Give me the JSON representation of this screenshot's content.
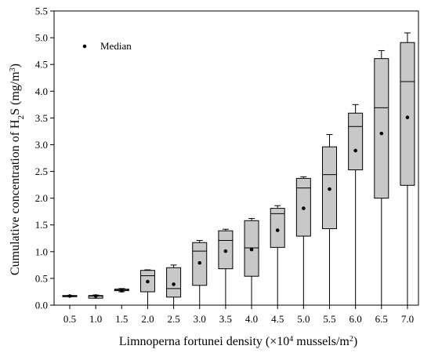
{
  "chart_data": {
    "type": "boxplot",
    "xlabel": {
      "pre": "Limnoperna fortunei density (×10",
      "sup": "4",
      "post": " mussels/m",
      "sup2": "2",
      "end": ")"
    },
    "ylabel": {
      "pre": "Cumulative concentration of H",
      "sub": "2",
      "mid": "S (mg/m",
      "sup": "3",
      "end": ")"
    },
    "ylim": [
      0.0,
      5.5
    ],
    "yticks": [
      "0.0",
      "0.5",
      "1.0",
      "1.5",
      "2.0",
      "2.5",
      "3.0",
      "3.5",
      "4.0",
      "4.5",
      "5.0",
      "5.5"
    ],
    "categories": [
      "0.5",
      "1.0",
      "1.5",
      "2.0",
      "2.5",
      "3.0",
      "3.5",
      "4.0",
      "4.5",
      "5.0",
      "5.5",
      "6.0",
      "6.5",
      "7.0"
    ],
    "legend": {
      "label": "Median",
      "position": "top-left"
    },
    "box_color": "#c8c8c8",
    "series": [
      {
        "x": "0.5",
        "min": 0.17,
        "q1": 0.17,
        "median": 0.17,
        "q3": 0.18,
        "max": 0.18,
        "marker": 0.17
      },
      {
        "x": "1.0",
        "min": 0.13,
        "q1": 0.13,
        "median": 0.17,
        "q3": 0.18,
        "max": 0.19,
        "marker": 0.17
      },
      {
        "x": "1.5",
        "min": 0.25,
        "q1": 0.27,
        "median": 0.28,
        "q3": 0.3,
        "max": 0.31,
        "marker": 0.27
      },
      {
        "x": "2.0",
        "min": 0.0,
        "q1": 0.25,
        "median": 0.55,
        "q3": 0.65,
        "max": 0.66,
        "marker": 0.44
      },
      {
        "x": "2.5",
        "min": 0.0,
        "q1": 0.15,
        "median": 0.31,
        "q3": 0.7,
        "max": 0.75,
        "marker": 0.39
      },
      {
        "x": "3.0",
        "min": 0.0,
        "q1": 0.37,
        "median": 1.01,
        "q3": 1.17,
        "max": 1.21,
        "marker": 0.79
      },
      {
        "x": "3.5",
        "min": 0.0,
        "q1": 0.68,
        "median": 1.21,
        "q3": 1.39,
        "max": 1.42,
        "marker": 1.01
      },
      {
        "x": "4.0",
        "min": 0.0,
        "q1": 0.54,
        "median": 1.07,
        "q3": 1.58,
        "max": 1.62,
        "marker": 1.04
      },
      {
        "x": "4.5",
        "min": 0.0,
        "q1": 1.08,
        "median": 1.71,
        "q3": 1.81,
        "max": 1.86,
        "marker": 1.4
      },
      {
        "x": "5.0",
        "min": 0.0,
        "q1": 1.29,
        "median": 2.19,
        "q3": 2.37,
        "max": 2.4,
        "marker": 1.81
      },
      {
        "x": "5.5",
        "min": 0.0,
        "q1": 1.43,
        "median": 2.44,
        "q3": 2.96,
        "max": 3.19,
        "marker": 2.17
      },
      {
        "x": "6.0",
        "min": 0.0,
        "q1": 2.53,
        "median": 3.34,
        "q3": 3.59,
        "max": 3.75,
        "marker": 2.89
      },
      {
        "x": "6.5",
        "min": 0.0,
        "q1": 2.0,
        "median": 3.69,
        "q3": 4.61,
        "max": 4.76,
        "marker": 3.21
      },
      {
        "x": "7.0",
        "min": 0.0,
        "q1": 2.24,
        "median": 4.18,
        "q3": 4.91,
        "max": 5.09,
        "marker": 3.51
      }
    ]
  }
}
